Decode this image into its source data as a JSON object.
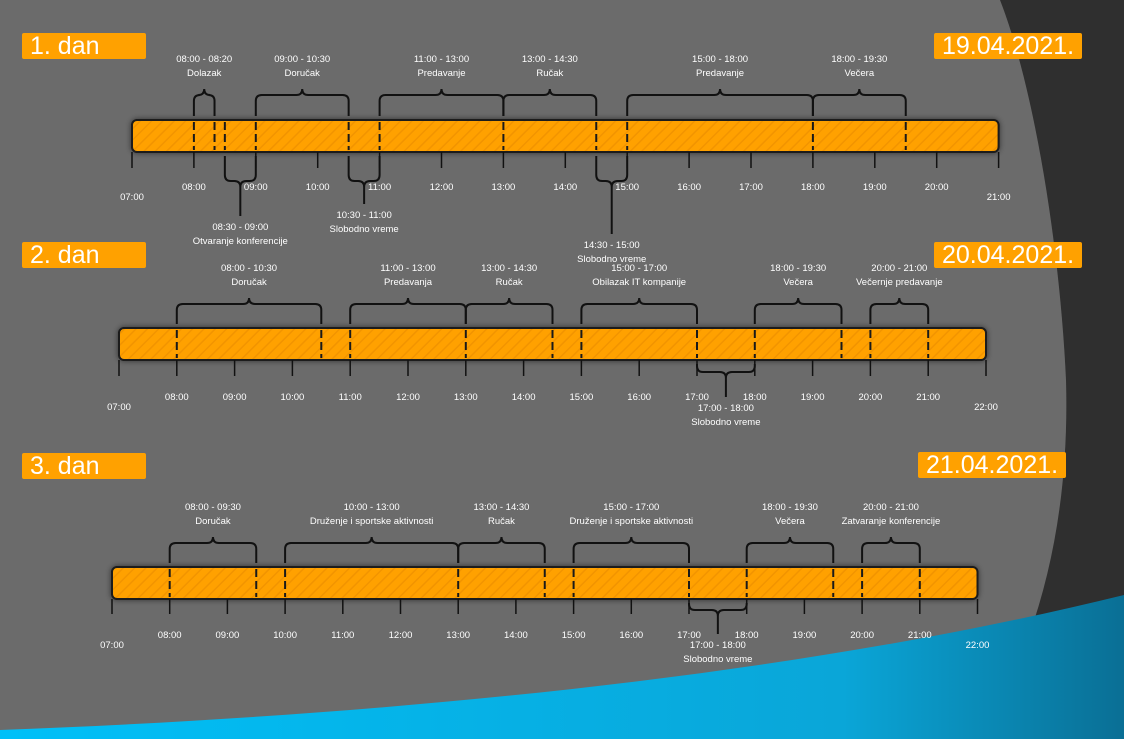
{
  "days": [
    {
      "label": "1. dan",
      "date": "19.04.2021.",
      "start_hour": 7,
      "end_hour": 21,
      "ticks": [
        "07:00",
        "08:00",
        "09:00",
        "10:00",
        "11:00",
        "12:00",
        "13:00",
        "14:00",
        "15:00",
        "16:00",
        "17:00",
        "18:00",
        "19:00",
        "20:00",
        "21:00"
      ],
      "events": [
        {
          "time": "08:00 - 08:20",
          "name": "Dolazak",
          "start": 8.0,
          "end": 8.3333,
          "pos": "above"
        },
        {
          "time": "08:30 - 09:00",
          "name": "Otvaranje konferencije",
          "start": 8.5,
          "end": 9.0,
          "pos": "below"
        },
        {
          "time": "09:00 - 10:30",
          "name": "Doručak",
          "start": 9.0,
          "end": 10.5,
          "pos": "above"
        },
        {
          "time": "10:30 - 11:00",
          "name": "Slobodno vreme",
          "start": 10.5,
          "end": 11.0,
          "pos": "below"
        },
        {
          "time": "11:00 - 13:00",
          "name": "Predavanje",
          "start": 11.0,
          "end": 13.0,
          "pos": "above"
        },
        {
          "time": "13:00 - 14:30",
          "name": "Ručak",
          "start": 13.0,
          "end": 14.5,
          "pos": "above"
        },
        {
          "time": "14:30 - 15:00",
          "name": "Slobodno vreme",
          "start": 14.5,
          "end": 15.0,
          "pos": "below"
        },
        {
          "time": "15:00 - 18:00",
          "name": "Predavanje",
          "start": 15.0,
          "end": 18.0,
          "pos": "above"
        },
        {
          "time": "18:00 - 19:30",
          "name": "Večera",
          "start": 18.0,
          "end": 19.5,
          "pos": "above"
        }
      ]
    },
    {
      "label": "2. dan",
      "date": "20.04.2021.",
      "start_hour": 7,
      "end_hour": 22,
      "ticks": [
        "07:00",
        "08:00",
        "09:00",
        "10:00",
        "11:00",
        "12:00",
        "13:00",
        "14:00",
        "15:00",
        "16:00",
        "17:00",
        "18:00",
        "19:00",
        "20:00",
        "21:00",
        "22:00"
      ],
      "events": [
        {
          "time": "08:00 - 10:30",
          "name": "Doručak",
          "start": 8.0,
          "end": 10.5,
          "pos": "above"
        },
        {
          "time": "11:00 - 13:00",
          "name": "Predavanja",
          "start": 11.0,
          "end": 13.0,
          "pos": "above"
        },
        {
          "time": "13:00 - 14:30",
          "name": "Ručak",
          "start": 13.0,
          "end": 14.5,
          "pos": "above"
        },
        {
          "time": "15:00 - 17:00",
          "name": "Obilazak IT kompanije",
          "start": 15.0,
          "end": 17.0,
          "pos": "above"
        },
        {
          "time": "17:00 - 18:00",
          "name": "Slobodno vreme",
          "start": 17.0,
          "end": 18.0,
          "pos": "below"
        },
        {
          "time": "18:00 - 19:30",
          "name": "Večera",
          "start": 18.0,
          "end": 19.5,
          "pos": "above"
        },
        {
          "time": "20:00 - 21:00",
          "name": "Večernje predavanje",
          "start": 20.0,
          "end": 21.0,
          "pos": "above"
        }
      ]
    },
    {
      "label": "3. dan",
      "date": "21.04.2021.",
      "start_hour": 7,
      "end_hour": 22,
      "ticks": [
        "07:00",
        "08:00",
        "09:00",
        "10:00",
        "11:00",
        "12:00",
        "13:00",
        "14:00",
        "15:00",
        "16:00",
        "17:00",
        "18:00",
        "19:00",
        "20:00",
        "21:00",
        "22:00"
      ],
      "events": [
        {
          "time": "08:00 - 09:30",
          "name": "Doručak",
          "start": 8.0,
          "end": 9.5,
          "pos": "above"
        },
        {
          "time": "10:00 - 13:00",
          "name": "Druženje i sportske aktivnosti",
          "start": 10.0,
          "end": 13.0,
          "pos": "above"
        },
        {
          "time": "13:00 - 14:30",
          "name": "Ručak",
          "start": 13.0,
          "end": 14.5,
          "pos": "above"
        },
        {
          "time": "15:00 - 17:00",
          "name": "Druženje i sportske aktivnosti",
          "start": 15.0,
          "end": 17.0,
          "pos": "above"
        },
        {
          "time": "17:00 - 18:00",
          "name": "Slobodno vreme",
          "start": 17.0,
          "end": 18.0,
          "pos": "below"
        },
        {
          "time": "18:00 - 19:30",
          "name": "Večera",
          "start": 18.0,
          "end": 19.5,
          "pos": "above"
        },
        {
          "time": "20:00 - 21:00",
          "name": "Zatvaranje konferencije",
          "start": 20.0,
          "end": 21.0,
          "pos": "above"
        }
      ]
    }
  ],
  "colors": {
    "bar": "#ffa100",
    "bar_hatch": "#f29400",
    "background_panel": "#6b6b6b",
    "background_dark": "#2f2f2f",
    "accent_blue": "#00b4f0",
    "text": "#ffffff"
  }
}
